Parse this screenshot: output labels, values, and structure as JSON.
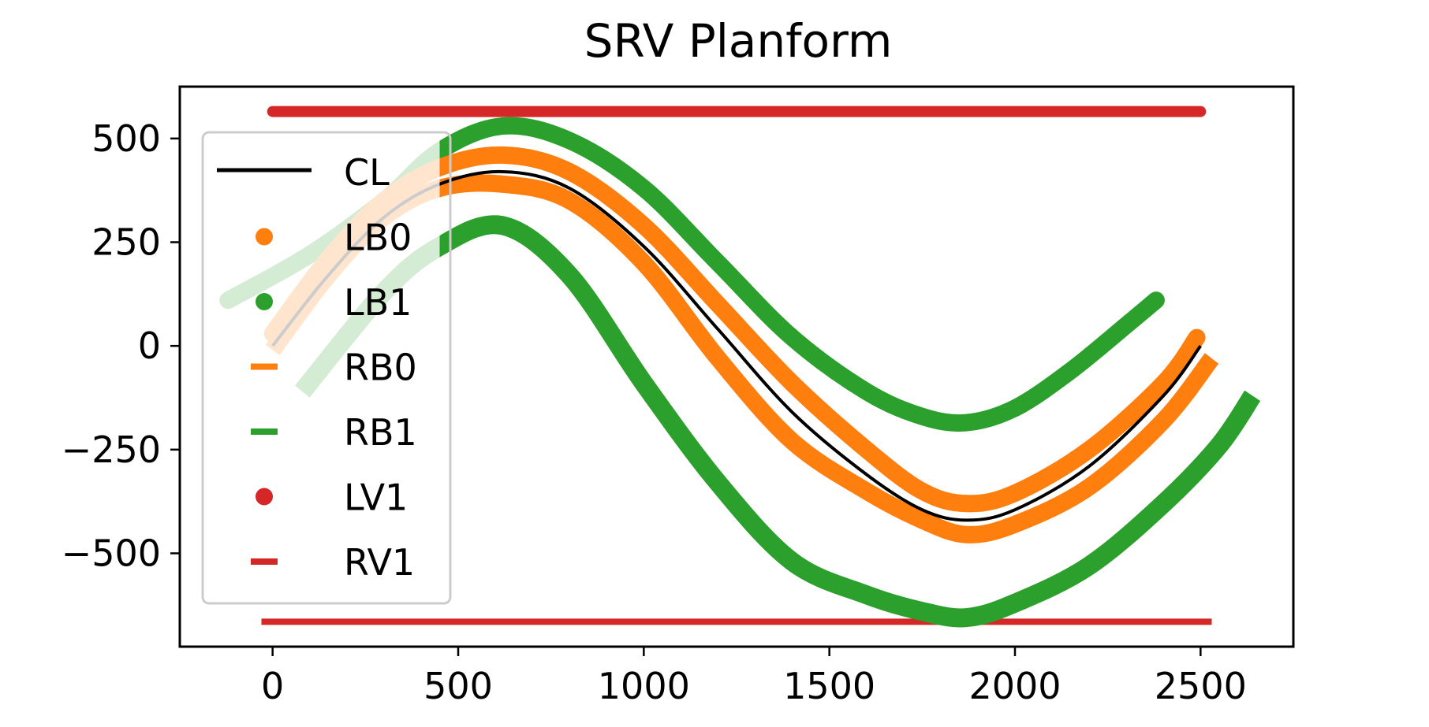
{
  "chart_data": {
    "type": "line",
    "title": "SRV Planform",
    "xlabel": "",
    "ylabel": "",
    "xlim": [
      -250,
      2750
    ],
    "ylim": [
      -725,
      625
    ],
    "xticks": [
      0,
      500,
      1000,
      1500,
      2000,
      2500
    ],
    "xtick_labels": [
      "0",
      "500",
      "1000",
      "1500",
      "2000",
      "2500"
    ],
    "yticks": [
      500,
      250,
      0,
      -250,
      -500
    ],
    "ytick_labels": [
      "500",
      "250",
      "0",
      "−250",
      "−500"
    ],
    "grid": false,
    "legend": {
      "location": "upper-left",
      "entries": [
        {
          "label": "CL",
          "marker": "line",
          "color": "#000000"
        },
        {
          "label": "LB0",
          "marker": "dot",
          "color": "#ff7f0e"
        },
        {
          "label": "LB1",
          "marker": "dot",
          "color": "#2ca02c"
        },
        {
          "label": "RB0",
          "marker": "dash",
          "color": "#ff7f0e"
        },
        {
          "label": "RB1",
          "marker": "dash",
          "color": "#2ca02c"
        },
        {
          "label": "LV1",
          "marker": "dot",
          "color": "#d62728"
        },
        {
          "label": "RV1",
          "marker": "dash",
          "color": "#d62728"
        }
      ]
    },
    "series": [
      {
        "name": "LV1",
        "color": "#d62728",
        "marker": "dot",
        "width": 14,
        "x": [
          0,
          2500
        ],
        "y": [
          565,
          565
        ]
      },
      {
        "name": "RV1",
        "color": "#d62728",
        "marker": "dash",
        "width": 8,
        "x": [
          -30,
          2530
        ],
        "y": [
          -665,
          -665
        ]
      },
      {
        "name": "LB1",
        "color": "#2ca02c",
        "marker": "dot",
        "width": 22,
        "x": [
          -120,
          100,
          300,
          450,
          620,
          800,
          1000,
          1200,
          1400,
          1600,
          1750,
          1870,
          2000,
          2150,
          2300,
          2380
        ],
        "y": [
          110,
          220,
          350,
          470,
          530,
          495,
          380,
          200,
          20,
          -110,
          -170,
          -185,
          -150,
          -60,
          50,
          110
        ]
      },
      {
        "name": "RB1",
        "color": "#2ca02c",
        "marker": "dash",
        "width": 24,
        "x": [
          80,
          300,
          450,
          620,
          800,
          1000,
          1200,
          1400,
          1600,
          1750,
          1870,
          2000,
          2200,
          2400,
          2550,
          2640
        ],
        "y": [
          -110,
          130,
          240,
          290,
          170,
          -90,
          -330,
          -520,
          -600,
          -640,
          -655,
          -620,
          -530,
          -380,
          -240,
          -120
        ]
      },
      {
        "name": "LB0",
        "color": "#ff7f0e",
        "marker": "dot",
        "width": 22,
        "x": [
          0,
          150,
          300,
          450,
          620,
          800,
          1000,
          1200,
          1400,
          1600,
          1750,
          1870,
          2000,
          2200,
          2400,
          2490
        ],
        "y": [
          30,
          210,
          350,
          430,
          460,
          420,
          290,
          100,
          -90,
          -250,
          -350,
          -380,
          -355,
          -250,
          -90,
          20
        ]
      },
      {
        "name": "RB0",
        "color": "#ff7f0e",
        "marker": "dash",
        "width": 22,
        "x": [
          0,
          150,
          300,
          450,
          620,
          800,
          1000,
          1200,
          1400,
          1600,
          1750,
          1870,
          2000,
          2200,
          2400,
          2530
        ],
        "y": [
          -10,
          170,
          310,
          380,
          390,
          350,
          200,
          -30,
          -230,
          -350,
          -420,
          -455,
          -430,
          -340,
          -180,
          -30
        ]
      },
      {
        "name": "CL",
        "color": "#000000",
        "marker": "line",
        "width": 4,
        "x": [
          0,
          150,
          300,
          450,
          620,
          800,
          1000,
          1200,
          1400,
          1600,
          1750,
          1870,
          2000,
          2200,
          2400,
          2500
        ],
        "y": [
          0,
          170,
          310,
          390,
          420,
          380,
          240,
          40,
          -160,
          -310,
          -395,
          -420,
          -395,
          -290,
          -120,
          0
        ]
      }
    ],
    "faded_segments": [
      {
        "name": "LB1",
        "color": "#2ca02c",
        "width": 22,
        "x_max": 450
      },
      {
        "name": "RB1",
        "color": "#2ca02c",
        "width": 24,
        "x_max": 450
      },
      {
        "name": "LB0",
        "color": "#ff7f0e",
        "width": 22,
        "x_max": 450
      },
      {
        "name": "RB0",
        "color": "#ff7f0e",
        "width": 22,
        "x_max": 450
      },
      {
        "name": "CL",
        "color": "#000000",
        "width": 4,
        "x_max": 450
      }
    ]
  }
}
